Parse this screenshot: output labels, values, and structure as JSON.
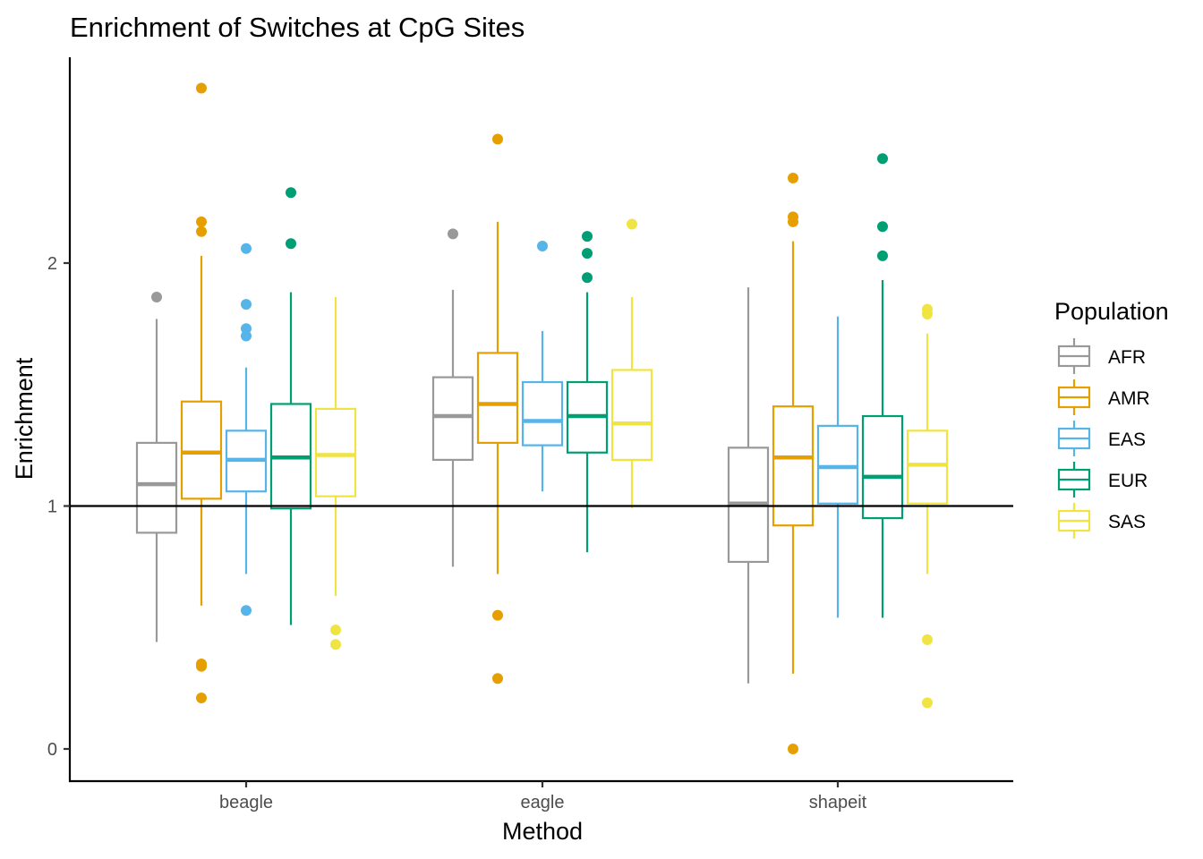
{
  "chart_data": {
    "type": "boxplot",
    "title": "Enrichment of Switches at CpG Sites",
    "xlabel": "Method",
    "ylabel": "Enrichment",
    "ylim": [
      -0.13,
      2.82
    ],
    "yticks": [
      0,
      1,
      2
    ],
    "reference_line": 1,
    "grid": false,
    "legend": {
      "title": "Population",
      "position": "right"
    },
    "categories": [
      "beagle",
      "eagle",
      "shapeit"
    ],
    "series": [
      {
        "name": "AFR",
        "color": "#999999",
        "boxes": [
          {
            "lower_whisker": 0.44,
            "q1": 0.89,
            "median": 1.09,
            "q3": 1.26,
            "upper_whisker": 1.77,
            "outliers": [
              1.86
            ]
          },
          {
            "lower_whisker": 0.75,
            "q1": 1.19,
            "median": 1.37,
            "q3": 1.53,
            "upper_whisker": 1.89,
            "outliers": [
              2.12
            ]
          },
          {
            "lower_whisker": 0.27,
            "q1": 0.77,
            "median": 1.01,
            "q3": 1.24,
            "upper_whisker": 1.9,
            "outliers": []
          }
        ]
      },
      {
        "name": "AMR",
        "color": "#E69F00",
        "boxes": [
          {
            "lower_whisker": 0.59,
            "q1": 1.03,
            "median": 1.22,
            "q3": 1.43,
            "upper_whisker": 2.03,
            "outliers": [
              2.72,
              2.17,
              2.13,
              0.35,
              0.34,
              0.21
            ]
          },
          {
            "lower_whisker": 0.72,
            "q1": 1.26,
            "median": 1.42,
            "q3": 1.63,
            "upper_whisker": 2.17,
            "outliers": [
              2.51,
              0.55,
              0.29
            ]
          },
          {
            "lower_whisker": 0.31,
            "q1": 0.92,
            "median": 1.2,
            "q3": 1.41,
            "upper_whisker": 2.09,
            "outliers": [
              2.35,
              2.19,
              2.17,
              0.0
            ]
          }
        ]
      },
      {
        "name": "EAS",
        "color": "#56B4E9",
        "boxes": [
          {
            "lower_whisker": 0.72,
            "q1": 1.06,
            "median": 1.19,
            "q3": 1.31,
            "upper_whisker": 1.57,
            "outliers": [
              2.06,
              1.83,
              1.73,
              1.7,
              0.57
            ]
          },
          {
            "lower_whisker": 1.06,
            "q1": 1.25,
            "median": 1.35,
            "q3": 1.51,
            "upper_whisker": 1.72,
            "outliers": [
              2.07
            ]
          },
          {
            "lower_whisker": 0.54,
            "q1": 1.01,
            "median": 1.16,
            "q3": 1.33,
            "upper_whisker": 1.78,
            "outliers": []
          }
        ]
      },
      {
        "name": "EUR",
        "color": "#009E73",
        "boxes": [
          {
            "lower_whisker": 0.51,
            "q1": 0.99,
            "median": 1.2,
            "q3": 1.42,
            "upper_whisker": 1.88,
            "outliers": [
              2.29,
              2.08
            ]
          },
          {
            "lower_whisker": 0.81,
            "q1": 1.22,
            "median": 1.37,
            "q3": 1.51,
            "upper_whisker": 1.88,
            "outliers": [
              2.11,
              2.04,
              1.94
            ]
          },
          {
            "lower_whisker": 0.54,
            "q1": 0.95,
            "median": 1.12,
            "q3": 1.37,
            "upper_whisker": 1.93,
            "outliers": [
              2.43,
              2.15,
              2.03
            ]
          }
        ]
      },
      {
        "name": "SAS",
        "color": "#F0E442",
        "boxes": [
          {
            "lower_whisker": 0.63,
            "q1": 1.04,
            "median": 1.21,
            "q3": 1.4,
            "upper_whisker": 1.86,
            "outliers": [
              0.49,
              0.43
            ]
          },
          {
            "lower_whisker": 0.99,
            "q1": 1.19,
            "median": 1.34,
            "q3": 1.56,
            "upper_whisker": 1.86,
            "outliers": [
              2.16
            ]
          },
          {
            "lower_whisker": 0.72,
            "q1": 1.01,
            "median": 1.17,
            "q3": 1.31,
            "upper_whisker": 1.71,
            "outliers": [
              1.81,
              1.79,
              0.45,
              0.19
            ]
          }
        ]
      }
    ]
  }
}
